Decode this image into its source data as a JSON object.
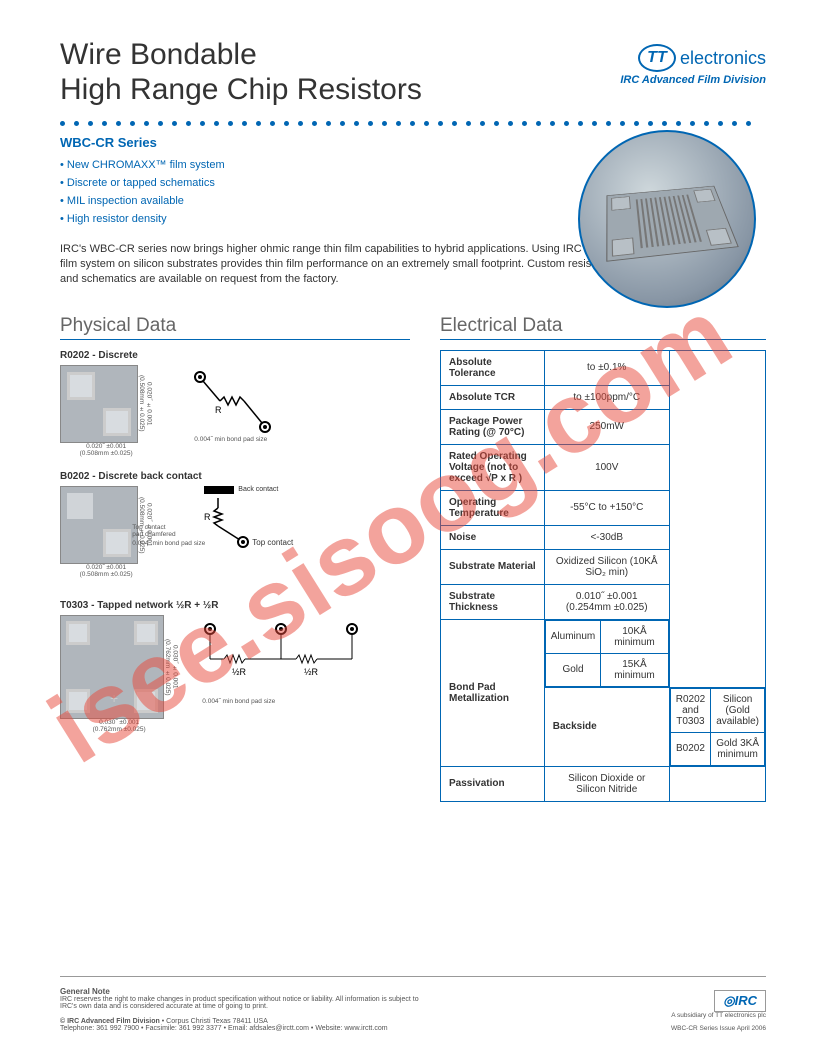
{
  "header": {
    "title_line1": "Wire Bondable",
    "title_line2": "High Range Chip Resistors",
    "brand": "electronics",
    "brand_prefix": "TT",
    "division": "IRC Advanced Film Division"
  },
  "series": {
    "name": "WBC-CR Series",
    "features": [
      "New CHROMAXX™ film system",
      "Discrete or tapped schematics",
      "MIL inspection available",
      "High resistor density"
    ]
  },
  "intro": "IRC's WBC-CR series now brings higher ohmic range thin film capabilities to hybrid applications. Using IRC's new CHROMAXX™ film system on silicon substrates provides thin film performance on an extremely small footprint. Custom resistance values, sizes and schematics are available on request from the factory.",
  "sections": {
    "physical": "Physical Data",
    "electrical": "Electrical Data"
  },
  "physical": {
    "pad_note": "0.004˝ min bond pad size",
    "items": [
      {
        "label": "R0202 - Discrete",
        "dim_h": "0.020˝ ±0.001",
        "dim_h_mm": "(0.508mm ±0.025)",
        "dim_v": "0.020˝ ±0.001",
        "dim_v_mm": "(0.508mm ±0.025)",
        "sch_label": "R"
      },
      {
        "label": "B0202 - Discrete back contact",
        "dim_h": "0.020˝ ±0.001",
        "dim_h_mm": "(0.508mm ±0.025)",
        "dim_v": "0.020˝ ±0.001",
        "dim_v_mm": "(0.508mm ±0.025)",
        "sch_label": "R",
        "note1": "Top contact pad chamfered",
        "note2": "Back contact",
        "note3": "Top contact"
      },
      {
        "label": "T0303 - Tapped network ½R + ½R",
        "dim_h": "0.030˝ ±0.001",
        "dim_h_mm": "(0.762mm ±0.025)",
        "dim_v": "0.030˝ ±0.001",
        "dim_v_mm": "(0.762mm ±0.025)",
        "sch_label1": "½R",
        "sch_label2": "½R"
      }
    ]
  },
  "electrical": {
    "rows": [
      {
        "label": "Absolute Tolerance",
        "value": "to ±0.1%"
      },
      {
        "label": "Absolute TCR",
        "value": "to ±100ppm/°C"
      },
      {
        "label": "Package Power Rating (@ 70°C)",
        "value": "250mW"
      },
      {
        "label": "Rated Operating Voltage (not to exceed √P x R )",
        "value": "100V"
      },
      {
        "label": "Operating Temperature",
        "value": "-55°C to +150°C"
      },
      {
        "label": "Noise",
        "value": "<-30dB"
      },
      {
        "label": "Substrate Material",
        "value": "Oxidized Silicon (10KÅ SiO₂ min)"
      },
      {
        "label": "Substrate Thickness",
        "value": "0.010˝ ±0.001 (0.254mm ±0.025)"
      }
    ],
    "bond_pad": {
      "label": "Bond Pad Metallization",
      "r1k": "Aluminum",
      "r1v": "10KÅ minimum",
      "r2k": "Gold",
      "r2v": "15KÅ minimum"
    },
    "backside": {
      "label": "Backside",
      "r1k": "R0202 and T0303",
      "r1v": "Silicon (Gold available)",
      "r2k": "B0202",
      "r2v": "Gold 3KÅ minimum"
    },
    "passivation": {
      "label": "Passivation",
      "value": "Silicon Dioxide or Silicon Nitride"
    }
  },
  "footer": {
    "gn_title": "General Note",
    "gn_text": "IRC reserves the right to make changes in product specification without notice or liability. All information is subject to IRC's own data and is considered accurate at time of going to print.",
    "copyright": "© IRC Advanced Film Division",
    "address": "• Corpus Christi Texas 78411 USA",
    "contact": "Telephone: 361 992 7900 • Facsimile: 361 992 3377 • Email: afdsales@irctt.com • Website: www.irctt.com",
    "irc": "IRC",
    "subsidiary": "A subsidiary of TT electronics plc",
    "issue": "WBC-CR Series Issue April 2006"
  },
  "watermark": {
    "text": "isee.sisoog.com",
    "color": "#e8493a",
    "opacity": 0.55
  }
}
